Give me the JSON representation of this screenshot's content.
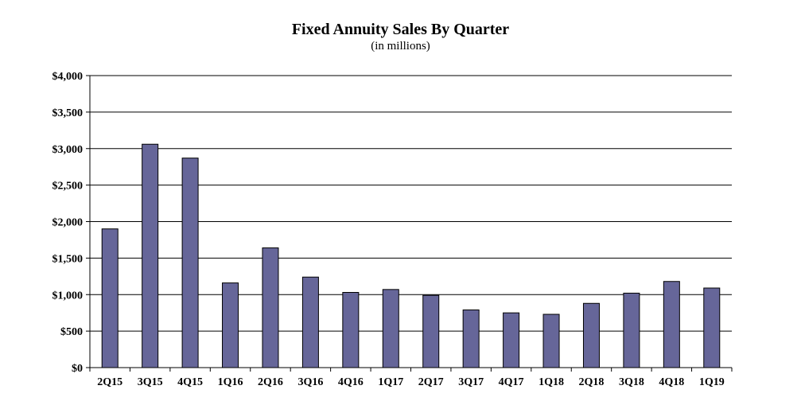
{
  "chart_data": {
    "type": "bar",
    "title": "Fixed Annuity Sales By Quarter",
    "subtitle": "(in millions)",
    "xlabel": "",
    "ylabel": "",
    "categories": [
      "2Q15",
      "3Q15",
      "4Q15",
      "1Q16",
      "2Q16",
      "3Q16",
      "4Q16",
      "1Q17",
      "2Q17",
      "3Q17",
      "4Q17",
      "1Q18",
      "2Q18",
      "3Q18",
      "4Q18",
      "1Q19"
    ],
    "values": [
      1900,
      3060,
      2870,
      1160,
      1640,
      1240,
      1030,
      1070,
      990,
      790,
      750,
      730,
      880,
      1020,
      1180,
      1090
    ],
    "ylim": [
      0,
      4000
    ],
    "yticks": [
      0,
      500,
      1000,
      1500,
      2000,
      2500,
      3000,
      3500,
      4000
    ],
    "ytick_labels": [
      "$0",
      "$500",
      "$1,000",
      "$1,500",
      "$2,000",
      "$2,500",
      "$3,000",
      "$3,500",
      "$4,000"
    ],
    "grid": true,
    "legend": "none",
    "colors": {
      "bar": "#666699",
      "bar_stroke": "#000000",
      "grid": "#000000"
    }
  }
}
